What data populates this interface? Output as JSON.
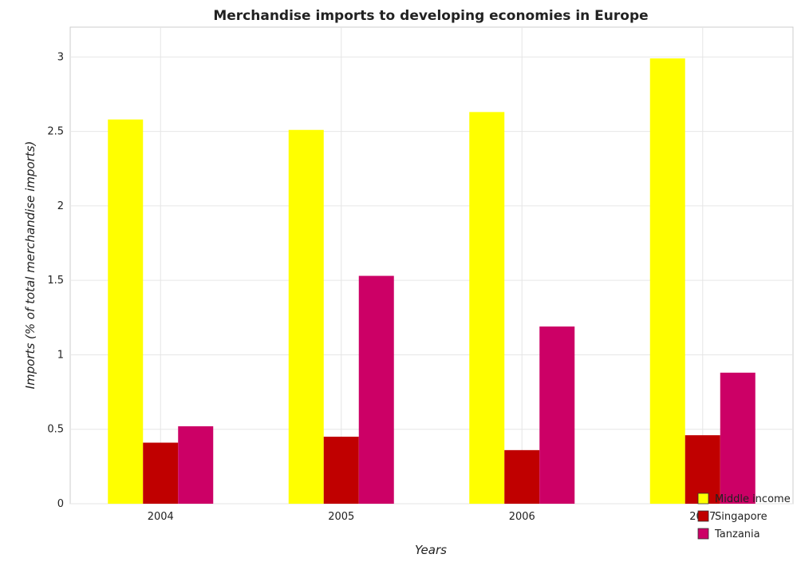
{
  "chart_data": {
    "type": "bar",
    "title": "Merchandise imports to developing economies in Europe",
    "xlabel": "Years",
    "ylabel": "Imports (% of total merchandise imports)",
    "categories": [
      "2004",
      "2005",
      "2006",
      "2007"
    ],
    "series": [
      {
        "name": "Middle income",
        "color": "#ffff00",
        "values": [
          2.58,
          2.51,
          2.63,
          2.99
        ]
      },
      {
        "name": "Singapore",
        "color": "#c00000",
        "values": [
          0.41,
          0.45,
          0.36,
          0.46
        ]
      },
      {
        "name": "Tanzania",
        "color": "#cc0066",
        "values": [
          0.52,
          1.53,
          1.19,
          0.88
        ]
      }
    ],
    "ylim": [
      0,
      3.2
    ],
    "yticks": [
      "0",
      "0.5",
      "1",
      "1.5",
      "2",
      "2.5",
      "3"
    ],
    "grid": true,
    "legend_position": "bottom-right"
  }
}
